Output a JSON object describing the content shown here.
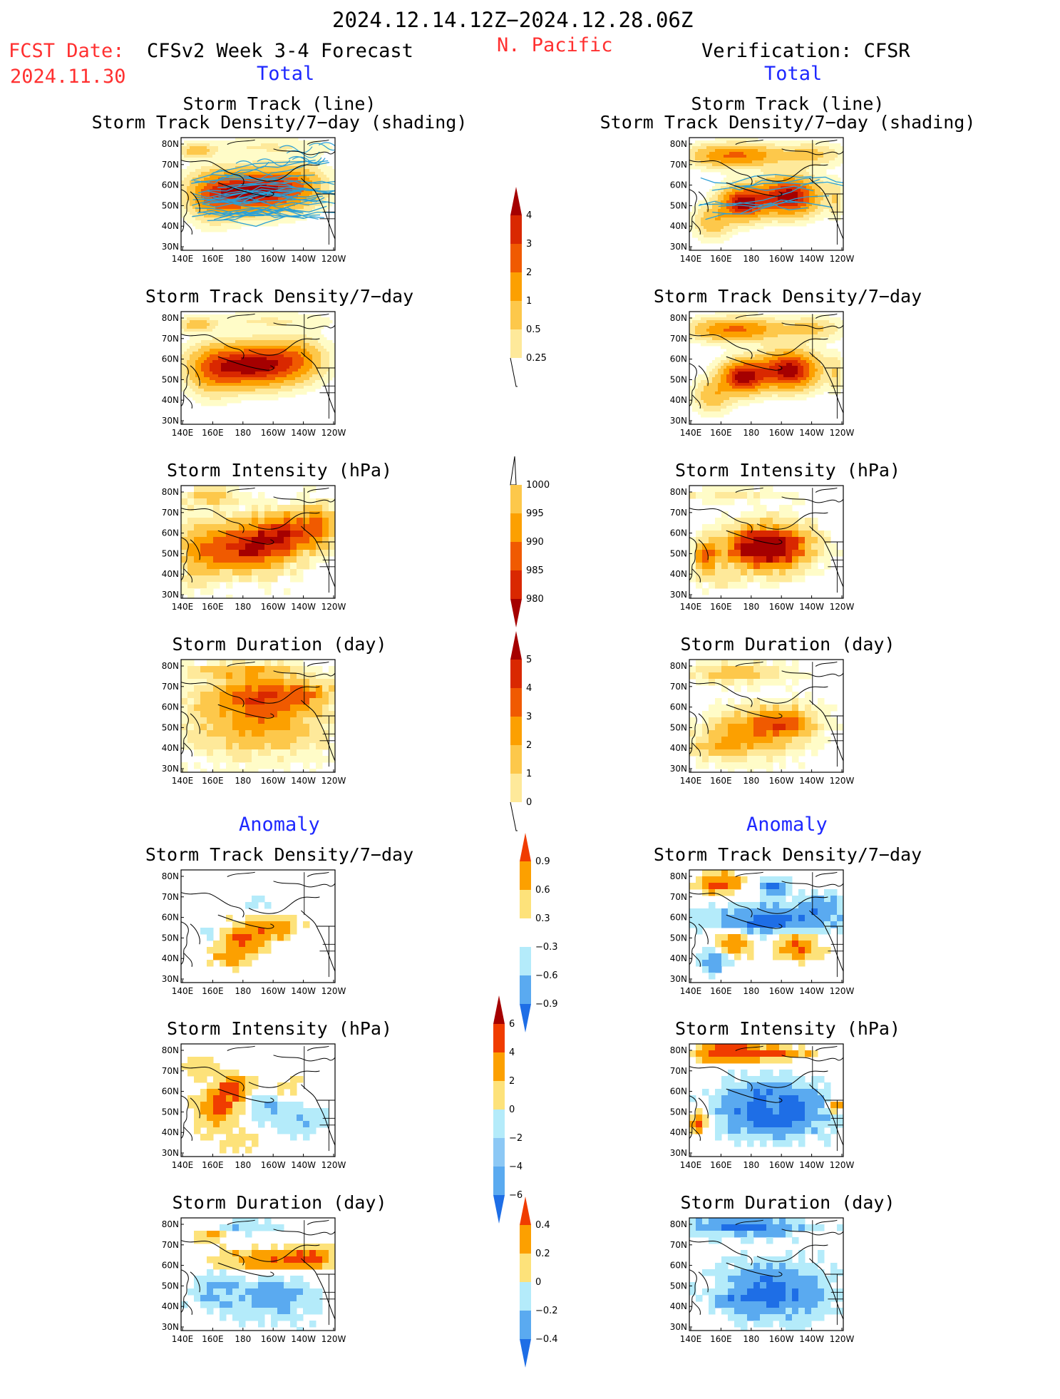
{
  "header": {
    "period": "2024.12.14.12Z−2024.12.28.06Z",
    "fcst_label": "FCST Date:",
    "fcst_date": "2024.11.30",
    "model": "CFSv2 Week 3-4 Forecast",
    "region": "N. Pacific",
    "verification": "Verification: CFSR",
    "total_left": "Total",
    "total_right": "Total",
    "anomaly_left": "Anomaly",
    "anomaly_right": "Anomaly"
  },
  "panel_titles": {
    "track_line": "Storm Track (line)",
    "track_shading": "Storm Track Density/7−day (shading)",
    "density": "Storm Track Density/7−day",
    "intensity": "Storm Intensity (hPa)",
    "duration": "Storm Duration (day)"
  },
  "axes": {
    "lat_ticks": [
      "80N",
      "70N",
      "60N",
      "50N",
      "40N",
      "30N"
    ],
    "lon_ticks": [
      "140E",
      "160E",
      "180",
      "160W",
      "140W",
      "120W"
    ]
  },
  "colorbars": {
    "density_total": {
      "labels": [
        "4",
        "3",
        "2",
        "1",
        "0.5",
        "0.25"
      ],
      "colors": [
        "#a50000",
        "#d92800",
        "#f05a00",
        "#fca000",
        "#fdc84b",
        "#fee99a",
        "#fffcc8"
      ]
    },
    "intensity_total": {
      "labels": [
        "1000",
        "995",
        "990",
        "985",
        "980"
      ],
      "colors": [
        "#fffcc8",
        "#fdc84b",
        "#fca000",
        "#f05a00",
        "#d92800",
        "#a50000"
      ]
    },
    "duration_total": {
      "labels": [
        "5",
        "4",
        "3",
        "2",
        "1",
        "0"
      ],
      "colors": [
        "#a50000",
        "#d92800",
        "#f05a00",
        "#fca000",
        "#fdc84b",
        "#fee99a",
        "#fffcc8"
      ]
    },
    "density_anom": {
      "labels": [
        "0.9",
        "0.6",
        "0.3",
        "−0.3",
        "−0.6",
        "−0.9"
      ],
      "colors": [
        "#f03c00",
        "#fca000",
        "#fde27a",
        "#ffffff",
        "#b4ebfa",
        "#5aaaf0",
        "#1e6ee6"
      ]
    },
    "intensity_anom": {
      "labels": [
        "6",
        "4",
        "2",
        "0",
        "−2",
        "−4",
        "−6"
      ],
      "colors": [
        "#a50000",
        "#f03c00",
        "#fca000",
        "#fde27a",
        "#b4ebfa",
        "#8cc8f5",
        "#5aaaf0",
        "#1e6ee6"
      ]
    },
    "duration_anom": {
      "labels": [
        "0.4",
        "0.2",
        "0",
        "−0.2",
        "−0.4"
      ],
      "colors": [
        "#f03c00",
        "#fca000",
        "#fde27a",
        "#b4ebfa",
        "#5aaaf0",
        "#1e6ee6"
      ]
    }
  },
  "map_colors": {
    "c0": "#fffcc8",
    "c1": "#fee99a",
    "c2": "#fdc84b",
    "c3": "#fca000",
    "c4": "#f05a00",
    "c5": "#d92800",
    "c6": "#a50000",
    "a_pos1": "#fde27a",
    "a_pos2": "#fca000",
    "a_pos3": "#f03c00",
    "a_neg1": "#b4ebfa",
    "a_neg2": "#5aaaf0",
    "a_neg3": "#1e6ee6",
    "track_line": "#2a9fd6"
  }
}
